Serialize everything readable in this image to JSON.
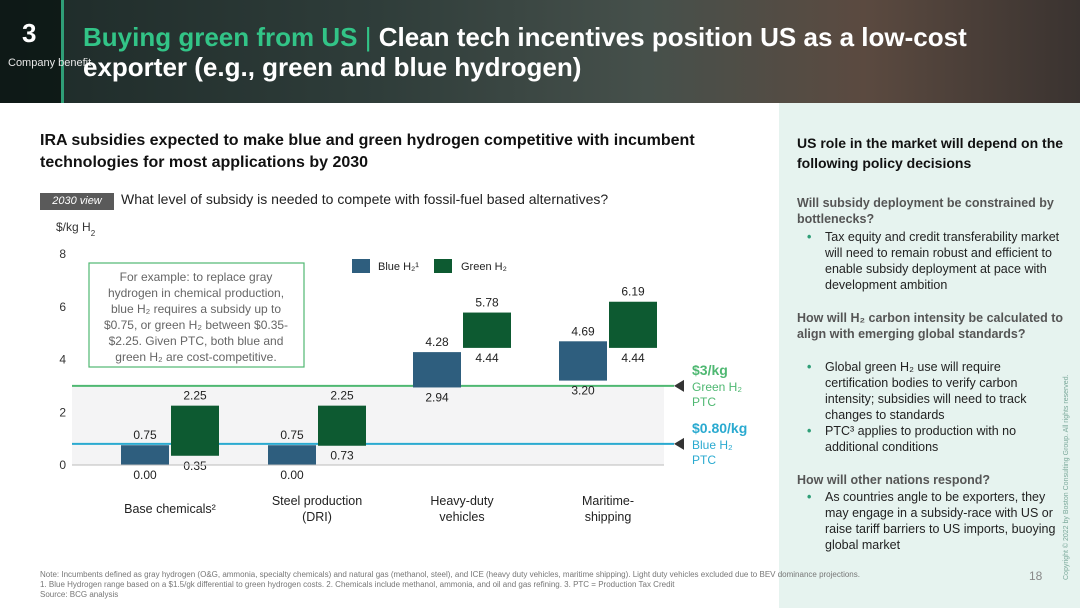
{
  "header": {
    "section_number": "3",
    "section_label": "Company benefit",
    "title_green": "Buying green from US",
    "title_sep": "|",
    "title_rest": "Clean tech incentives position US as a low-cost exporter (e.g., green and blue hydrogen)"
  },
  "main": {
    "subtitle": "IRA subsidies expected to make blue and green hydrogen competitive with incumbent technologies for most applications by 2030",
    "view_tag": "2030 view",
    "question": "What level of subsidy is needed to compete with fossil-fuel based alternatives?"
  },
  "chart_data": {
    "type": "bar",
    "subtype": "floating-range",
    "ylabel": "$/kg H2",
    "ylim": [
      0,
      8
    ],
    "yticks": [
      "0",
      "2",
      "4",
      "6",
      "8"
    ],
    "categories": [
      "Base chemicals²",
      "Steel production (DRI)",
      "Heavy-duty vehicles",
      "Maritime-shipping"
    ],
    "legend": [
      "Blue H₂¹",
      "Green H₂"
    ],
    "series": [
      {
        "name": "Blue H2",
        "color": "#2e5e7e",
        "ranges": [
          [
            0.0,
            0.75
          ],
          [
            0.0,
            0.75
          ],
          [
            2.94,
            4.28
          ],
          [
            3.2,
            4.69
          ]
        ],
        "low_labels": [
          "0.00",
          "0.00",
          "2.94",
          "3.20"
        ],
        "high_labels": [
          "0.75",
          "0.75",
          "4.28",
          "4.69"
        ]
      },
      {
        "name": "Green H2",
        "color": "#0d5a31",
        "ranges": [
          [
            0.35,
            2.25
          ],
          [
            0.73,
            2.25
          ],
          [
            4.44,
            5.78
          ],
          [
            4.44,
            6.19
          ]
        ],
        "low_labels": [
          "0.35",
          "0.73",
          "4.44",
          "4.44"
        ],
        "high_labels": [
          "2.25",
          "2.25",
          "5.78",
          "6.19"
        ]
      }
    ],
    "reference_lines": [
      {
        "value": 3.0,
        "label_main": "$3/kg",
        "label_sub1": "Green H₂",
        "label_sub2": "PTC",
        "color": "#4fb872"
      },
      {
        "value": 0.8,
        "label_main": "$0.80/kg",
        "label_sub1": "Blue H₂",
        "label_sub2": "PTC",
        "color": "#2aaad0"
      }
    ],
    "annotation": "For example: to replace gray hydrogen in chemical production, blue H₂ requires a subsidy up to $0.75, or green H₂ between $0.35-$2.25. Given PTC, both blue and green H₂ are cost-competitive."
  },
  "right_panel": {
    "title": "US role in the market will depend on the following policy decisions",
    "q1": "Will subsidy deployment be constrained by bottlenecks?",
    "q1_bullets": [
      "Tax equity and credit transferability market will need to remain robust and efficient to enable subsidy deployment at pace with development ambition"
    ],
    "q2": "How will H₂ carbon intensity be calculated to align with emerging global standards?",
    "q2_bullets": [
      "Global green H₂ use will require certification bodies to verify carbon intensity; subsidies will need to track changes to standards",
      "PTC³ applies to production with no additional conditions"
    ],
    "q3": "How will other nations respond?",
    "q3_bullets": [
      "As countries angle to be exporters, they may engage in a subsidy-race with US or raise tariff barriers to US imports, buoying global market"
    ]
  },
  "footer": {
    "note1": "Note: Incumbents defined as gray hydrogen (O&G, ammonia, specialty chemicals) and natural gas (methanol, steel), and ICE (heavy duty vehicles, maritime shipping). Light duty vehicles excluded due to BEV dominance projections.",
    "note2": "1. Blue Hydrogen range based on a $1.5/gk differential to green hydrogen costs. 2. Chemicals include methanol, ammonia, and oil and gas refining. 3. PTC = Production Tax Credit",
    "source": "Source: BCG analysis",
    "page_number": "18",
    "copyright": "Copyright © 2022 by Boston Consulting Group. All rights reserved."
  }
}
